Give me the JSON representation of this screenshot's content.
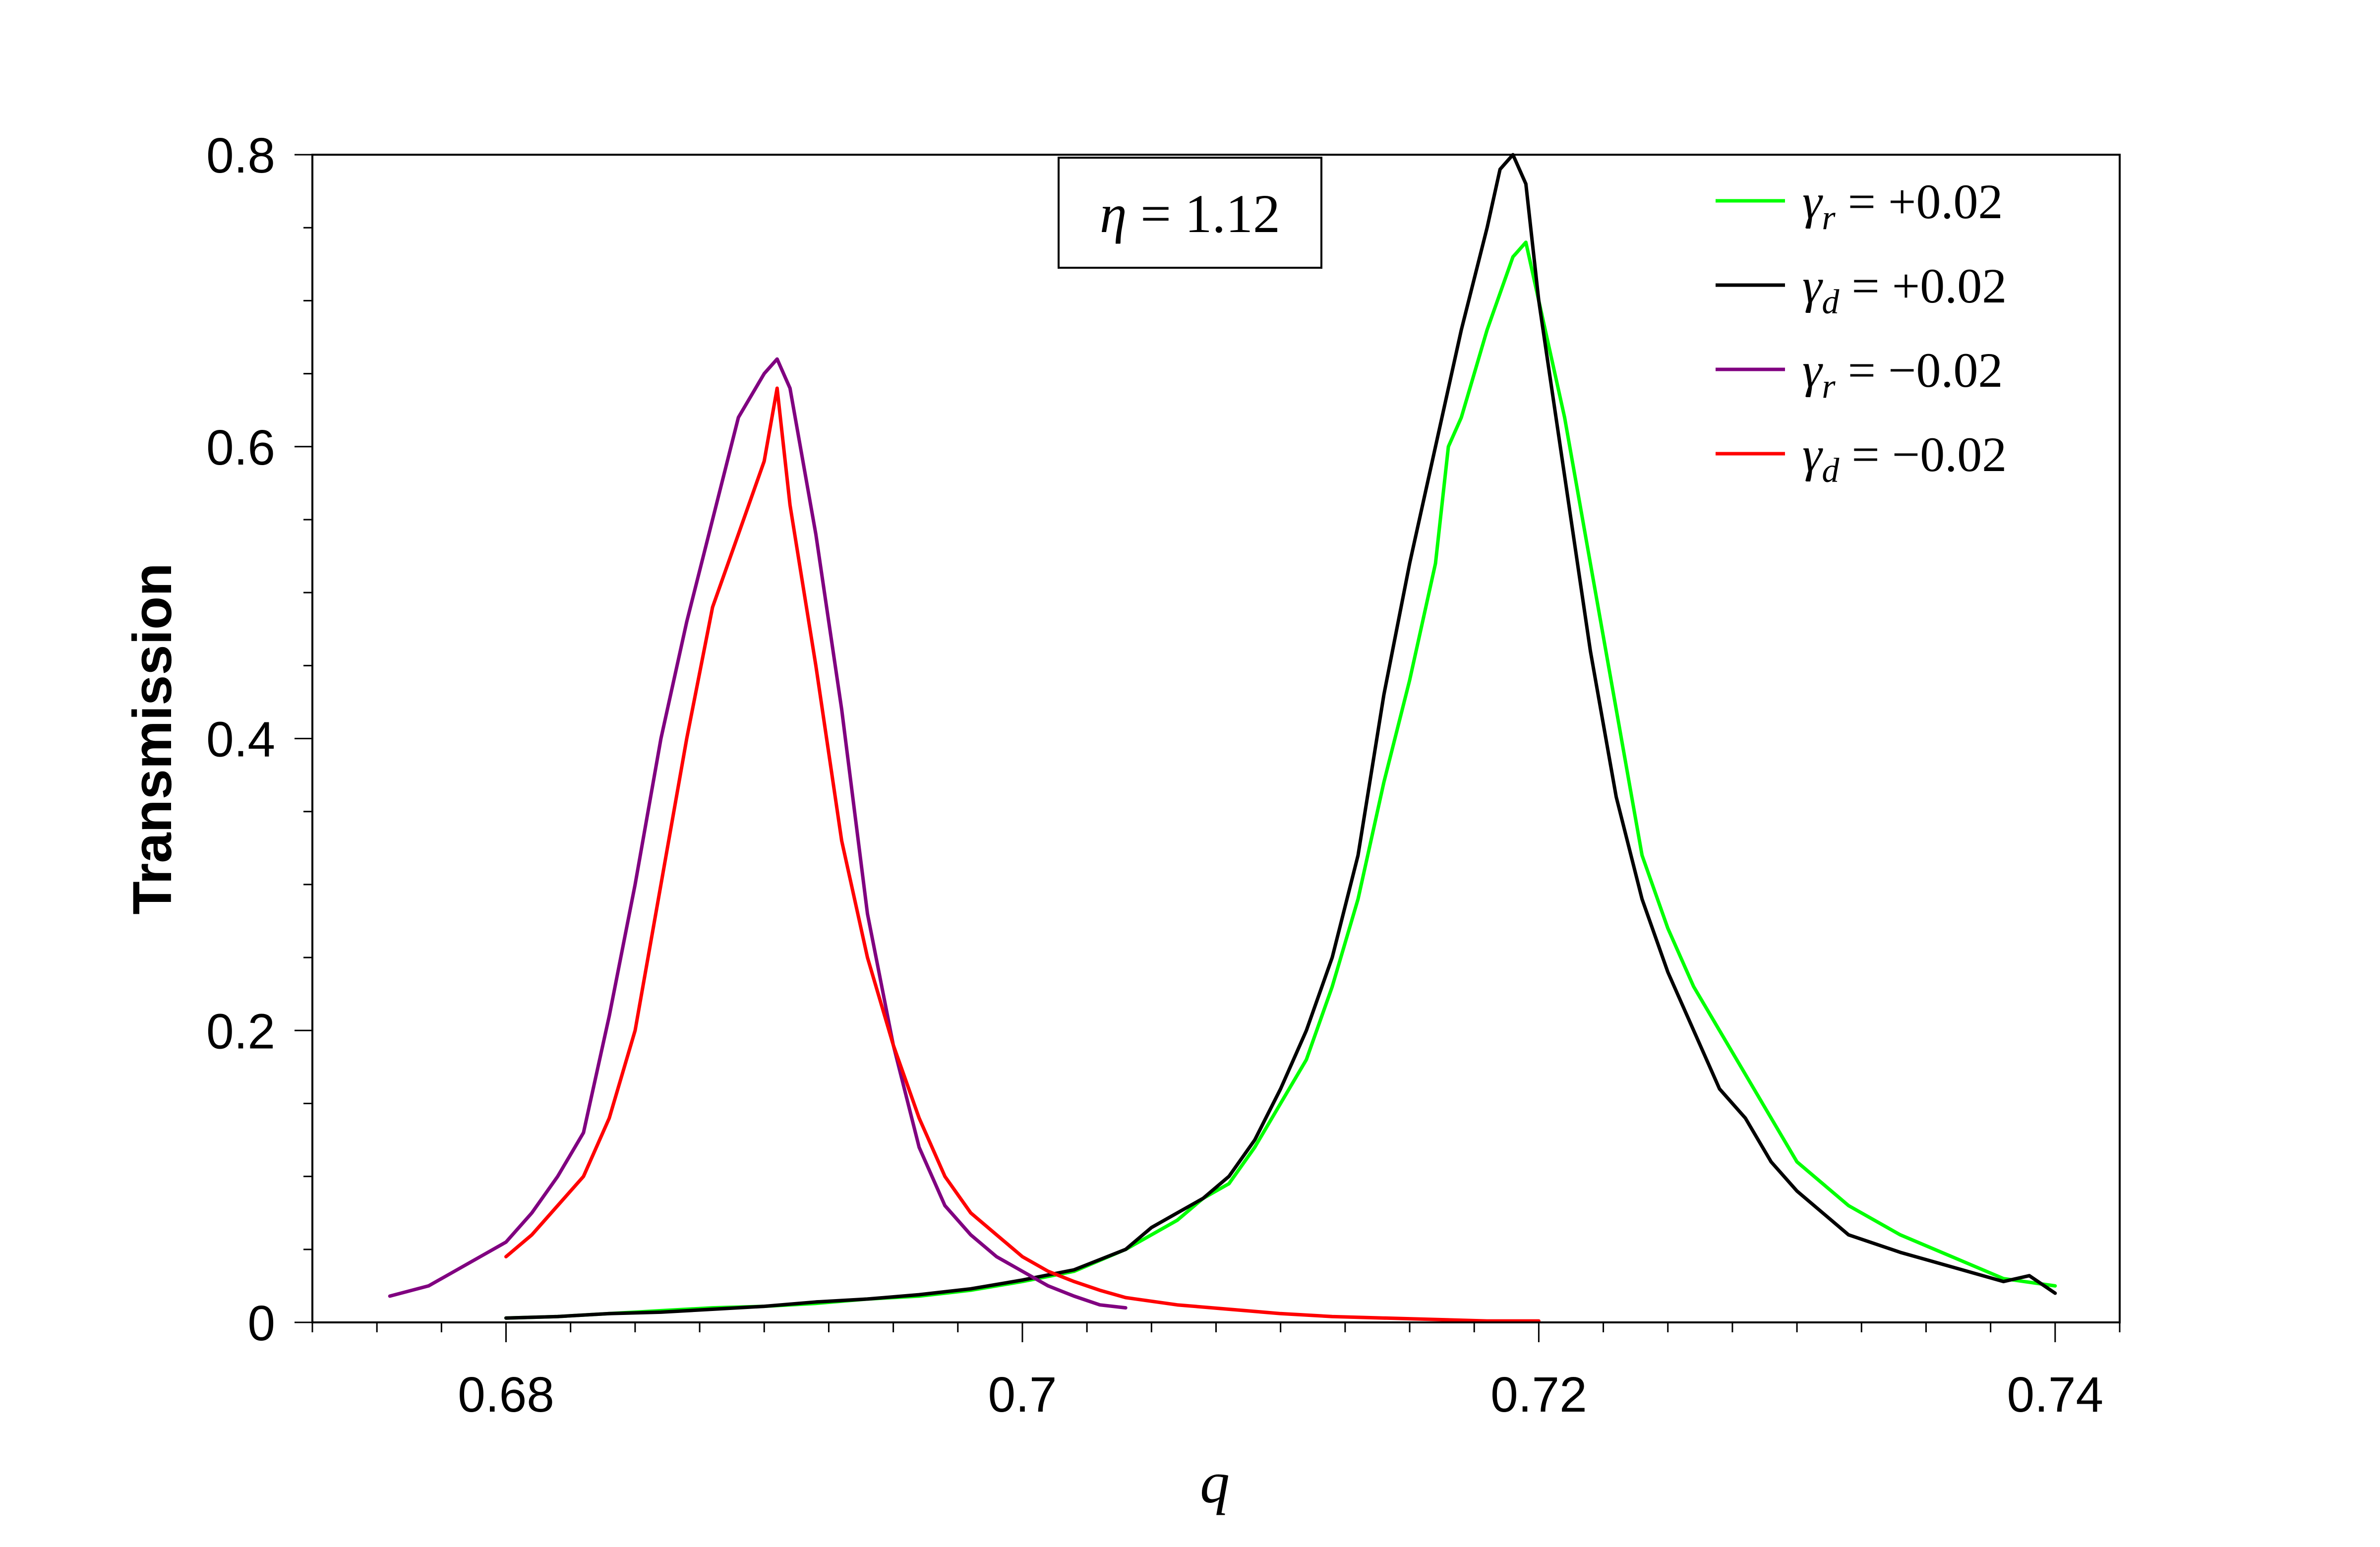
{
  "chart_data": {
    "type": "line",
    "title": "",
    "xlabel": "q",
    "ylabel": "Transmission",
    "xlim": [
      0.6725,
      0.7425
    ],
    "ylim": [
      0,
      0.8
    ],
    "grid": false,
    "legend_position": "top-right",
    "x_ticks": [
      {
        "value": 0.68,
        "label": "0.68"
      },
      {
        "value": 0.7,
        "label": "0.7"
      },
      {
        "value": 0.72,
        "label": "0.72"
      },
      {
        "value": 0.74,
        "label": "0.74"
      }
    ],
    "x_minor_step": 0.0025,
    "y_ticks": [
      {
        "value": 0,
        "label": "0"
      },
      {
        "value": 0.2,
        "label": "0.2"
      },
      {
        "value": 0.4,
        "label": "0.4"
      },
      {
        "value": 0.6,
        "label": "0.6"
      },
      {
        "value": 0.8,
        "label": "0.8"
      }
    ],
    "y_minor_step": 0.05,
    "annotation": {
      "symbol": "η",
      "text": " = 1.12"
    },
    "series": [
      {
        "name": "γr = +0.02",
        "symbol": "γ",
        "subscript": "r",
        "value_text": " = +0.02",
        "color": "#00ff00",
        "x": [
          0.68,
          0.682,
          0.684,
          0.686,
          0.688,
          0.69,
          0.692,
          0.694,
          0.696,
          0.698,
          0.7,
          0.702,
          0.704,
          0.706,
          0.707,
          0.708,
          0.709,
          0.71,
          0.711,
          0.712,
          0.713,
          0.714,
          0.715,
          0.716,
          0.7165,
          0.717,
          0.718,
          0.719,
          0.7195,
          0.72,
          0.721,
          0.722,
          0.723,
          0.724,
          0.725,
          0.726,
          0.727,
          0.728,
          0.729,
          0.73,
          0.732,
          0.734,
          0.736,
          0.738,
          0.74
        ],
        "y": [
          0.003,
          0.004,
          0.006,
          0.008,
          0.01,
          0.011,
          0.013,
          0.016,
          0.018,
          0.022,
          0.028,
          0.035,
          0.05,
          0.07,
          0.085,
          0.095,
          0.12,
          0.15,
          0.18,
          0.23,
          0.29,
          0.37,
          0.44,
          0.52,
          0.6,
          0.62,
          0.68,
          0.73,
          0.74,
          0.7,
          0.62,
          0.52,
          0.42,
          0.32,
          0.27,
          0.23,
          0.2,
          0.17,
          0.14,
          0.11,
          0.08,
          0.06,
          0.045,
          0.03,
          0.025
        ]
      },
      {
        "name": "γd = +0.02",
        "symbol": "γ",
        "subscript": "d",
        "value_text": " = +0.02",
        "color": "#000000",
        "x": [
          0.68,
          0.682,
          0.684,
          0.686,
          0.688,
          0.69,
          0.692,
          0.694,
          0.696,
          0.698,
          0.7,
          0.702,
          0.704,
          0.705,
          0.706,
          0.707,
          0.708,
          0.709,
          0.71,
          0.711,
          0.712,
          0.713,
          0.714,
          0.715,
          0.716,
          0.717,
          0.718,
          0.7185,
          0.719,
          0.7195,
          0.72,
          0.721,
          0.722,
          0.723,
          0.724,
          0.725,
          0.726,
          0.727,
          0.728,
          0.729,
          0.73,
          0.732,
          0.734,
          0.736,
          0.738,
          0.739,
          0.74
        ],
        "y": [
          0.003,
          0.004,
          0.006,
          0.007,
          0.009,
          0.011,
          0.014,
          0.016,
          0.019,
          0.023,
          0.029,
          0.036,
          0.05,
          0.065,
          0.075,
          0.085,
          0.1,
          0.125,
          0.16,
          0.2,
          0.25,
          0.32,
          0.43,
          0.52,
          0.6,
          0.68,
          0.75,
          0.79,
          0.8,
          0.78,
          0.7,
          0.58,
          0.46,
          0.36,
          0.29,
          0.24,
          0.2,
          0.16,
          0.14,
          0.11,
          0.09,
          0.06,
          0.048,
          0.038,
          0.028,
          0.032,
          0.02
        ]
      },
      {
        "name": "γr = −0.02",
        "symbol": "γ",
        "subscript": "r",
        "value_text": " = −0.02",
        "color": "#800080",
        "x": [
          0.6755,
          0.677,
          0.678,
          0.679,
          0.68,
          0.681,
          0.682,
          0.683,
          0.684,
          0.685,
          0.686,
          0.687,
          0.688,
          0.689,
          0.69,
          0.6905,
          0.691,
          0.692,
          0.693,
          0.694,
          0.695,
          0.696,
          0.697,
          0.698,
          0.699,
          0.7,
          0.701,
          0.702,
          0.703,
          0.704
        ],
        "y": [
          0.018,
          0.025,
          0.035,
          0.045,
          0.055,
          0.075,
          0.1,
          0.13,
          0.21,
          0.3,
          0.4,
          0.48,
          0.55,
          0.62,
          0.65,
          0.66,
          0.64,
          0.54,
          0.42,
          0.28,
          0.19,
          0.12,
          0.08,
          0.06,
          0.045,
          0.035,
          0.025,
          0.018,
          0.012,
          0.01
        ]
      },
      {
        "name": "γd = −0.02",
        "symbol": "γ",
        "subscript": "d",
        "value_text": " = −0.02",
        "color": "#ff0000",
        "x": [
          0.68,
          0.681,
          0.682,
          0.683,
          0.684,
          0.685,
          0.686,
          0.687,
          0.688,
          0.689,
          0.69,
          0.6905,
          0.691,
          0.692,
          0.693,
          0.694,
          0.695,
          0.696,
          0.697,
          0.698,
          0.699,
          0.7,
          0.701,
          0.702,
          0.703,
          0.704,
          0.706,
          0.708,
          0.71,
          0.712,
          0.714,
          0.716,
          0.718,
          0.72
        ],
        "y": [
          0.045,
          0.06,
          0.08,
          0.1,
          0.14,
          0.2,
          0.3,
          0.4,
          0.49,
          0.54,
          0.59,
          0.64,
          0.56,
          0.45,
          0.33,
          0.25,
          0.19,
          0.14,
          0.1,
          0.075,
          0.06,
          0.045,
          0.035,
          0.028,
          0.022,
          0.017,
          0.012,
          0.009,
          0.006,
          0.004,
          0.003,
          0.002,
          0.001,
          0.001
        ]
      }
    ]
  }
}
